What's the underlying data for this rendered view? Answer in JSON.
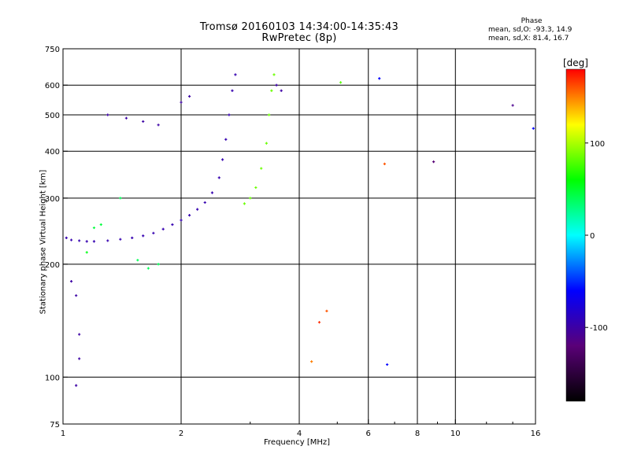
{
  "title": {
    "line1": "Tromsø 20160103 14:34:00-14:35:43",
    "line2": "RwPretec (8p)"
  },
  "phase_info": {
    "heading": "Phase",
    "o_line": "mean, sd,O: -93.3, 14.9",
    "x_line": "mean, sd,X:  81.4, 16.7"
  },
  "colorbar": {
    "label": "[deg]",
    "ticks": [
      "100",
      "0",
      "-100"
    ],
    "tick_values": [
      100,
      0,
      -100
    ],
    "range": [
      -180,
      180
    ],
    "colors": [
      "#000000",
      "#5a0078",
      "#0000ff",
      "#00ffff",
      "#00ff00",
      "#ffff00",
      "#ff0000"
    ]
  },
  "chart_data": {
    "type": "scatter",
    "title": "Tromsø 20160103 14:34:00-14:35:43",
    "subtitle": "RwPretec (8p)",
    "xlabel": "Frequency [MHz]",
    "ylabel": "Stationary phase Virtual Height [km]",
    "xscale": "log",
    "yscale": "log",
    "xlim": [
      1,
      16
    ],
    "ylim": [
      75,
      750
    ],
    "xticks": [
      1,
      2,
      4,
      6,
      8,
      10,
      16
    ],
    "xtick_labels": [
      "1",
      "2",
      "4",
      "6",
      "8",
      "10",
      "16"
    ],
    "yticks": [
      75,
      100,
      200,
      300,
      400,
      500,
      600,
      750
    ],
    "ytick_labels": [
      "75",
      "100",
      "200",
      "300",
      "400",
      "500",
      "600",
      "750"
    ],
    "grid": true,
    "color_encoding": "phase [deg]",
    "series": [
      {
        "points": [
          [
            1.02,
            235,
            -95
          ],
          [
            1.05,
            232,
            -95
          ],
          [
            1.1,
            231,
            -95
          ],
          [
            1.15,
            230,
            -95
          ],
          [
            1.2,
            230,
            -95
          ],
          [
            1.3,
            231,
            -95
          ],
          [
            1.4,
            233,
            -95
          ],
          [
            1.5,
            235,
            -95
          ],
          [
            1.6,
            238,
            -95
          ],
          [
            1.7,
            242,
            -95
          ],
          [
            1.8,
            248,
            -95
          ],
          [
            1.9,
            255,
            -95
          ],
          [
            2.0,
            262,
            -95
          ],
          [
            2.1,
            270,
            -95
          ],
          [
            2.2,
            280,
            -95
          ],
          [
            2.3,
            292,
            -95
          ],
          [
            2.4,
            310,
            -95
          ],
          [
            2.5,
            340,
            -95
          ],
          [
            2.55,
            380,
            -95
          ],
          [
            2.6,
            430,
            -95
          ],
          [
            2.65,
            500,
            -95
          ],
          [
            2.7,
            580,
            -95
          ],
          [
            2.75,
            640,
            -95
          ]
        ]
      },
      {
        "points": [
          [
            2.9,
            290,
            85
          ],
          [
            3.0,
            300,
            85
          ],
          [
            3.1,
            320,
            85
          ],
          [
            3.2,
            360,
            85
          ],
          [
            3.3,
            420,
            85
          ],
          [
            3.35,
            500,
            85
          ],
          [
            3.4,
            580,
            85
          ],
          [
            3.45,
            640,
            85
          ]
        ]
      },
      {
        "points": [
          [
            1.3,
            500,
            -100
          ],
          [
            1.45,
            490,
            -100
          ],
          [
            1.6,
            480,
            -100
          ],
          [
            1.75,
            470,
            -100
          ],
          [
            2.0,
            540,
            -100
          ],
          [
            2.1,
            560,
            -100
          ],
          [
            3.5,
            600,
            -100
          ],
          [
            3.6,
            580,
            -100
          ]
        ]
      },
      {
        "points": [
          [
            1.2,
            250,
            45
          ],
          [
            1.25,
            255,
            45
          ],
          [
            1.4,
            300,
            40
          ],
          [
            1.55,
            205,
            40
          ],
          [
            1.65,
            195,
            40
          ],
          [
            1.75,
            200,
            40
          ],
          [
            1.15,
            215,
            55
          ]
        ]
      },
      {
        "points": [
          [
            1.05,
            180,
            -100
          ],
          [
            1.08,
            165,
            -100
          ],
          [
            1.1,
            130,
            -100
          ],
          [
            1.1,
            112,
            -100
          ],
          [
            1.08,
            95,
            -100
          ],
          [
            4.3,
            110,
            150
          ],
          [
            4.5,
            140,
            170
          ],
          [
            4.7,
            150,
            160
          ],
          [
            5.1,
            610,
            80
          ],
          [
            6.4,
            625,
            -60
          ],
          [
            6.6,
            370,
            160
          ],
          [
            6.7,
            108,
            -60
          ],
          [
            8.8,
            375,
            -120
          ],
          [
            14.0,
            530,
            -110
          ],
          [
            15.8,
            460,
            -60
          ]
        ]
      }
    ]
  }
}
